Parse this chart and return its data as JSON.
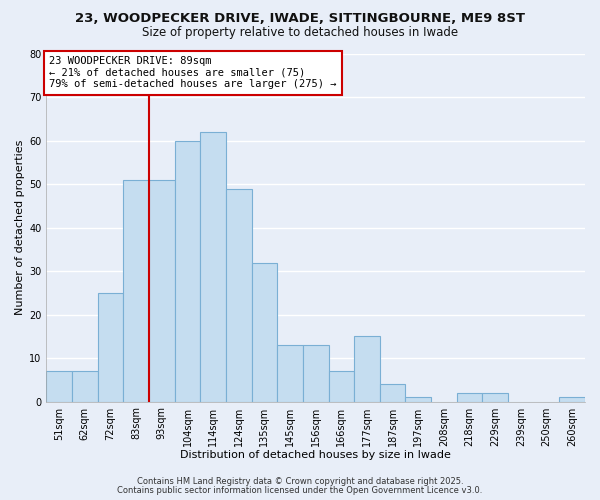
{
  "title_line1": "23, WOODPECKER DRIVE, IWADE, SITTINGBOURNE, ME9 8ST",
  "title_line2": "Size of property relative to detached houses in Iwade",
  "xlabel": "Distribution of detached houses by size in Iwade",
  "ylabel": "Number of detached properties",
  "bar_labels": [
    "51sqm",
    "62sqm",
    "72sqm",
    "83sqm",
    "93sqm",
    "104sqm",
    "114sqm",
    "124sqm",
    "135sqm",
    "145sqm",
    "156sqm",
    "166sqm",
    "177sqm",
    "187sqm",
    "197sqm",
    "208sqm",
    "218sqm",
    "229sqm",
    "239sqm",
    "250sqm",
    "260sqm"
  ],
  "bar_values": [
    7,
    7,
    25,
    51,
    51,
    60,
    62,
    49,
    32,
    13,
    13,
    7,
    15,
    4,
    1,
    0,
    2,
    2,
    0,
    0,
    1
  ],
  "bar_color": "#c5ddf0",
  "bar_edge_color": "#7aafd4",
  "vline_color": "#cc0000",
  "ylim": [
    0,
    80
  ],
  "yticks": [
    0,
    10,
    20,
    30,
    40,
    50,
    60,
    70,
    80
  ],
  "annotation_box_text": "23 WOODPECKER DRIVE: 89sqm\n← 21% of detached houses are smaller (75)\n79% of semi-detached houses are larger (275) →",
  "footnote_line1": "Contains HM Land Registry data © Crown copyright and database right 2025.",
  "footnote_line2": "Contains public sector information licensed under the Open Government Licence v3.0.",
  "background_color": "#e8eef8",
  "plot_bg_color": "#e8eef8",
  "grid_color": "#ffffff",
  "title_fontsize": 9.5,
  "subtitle_fontsize": 8.5,
  "axis_label_fontsize": 8,
  "tick_fontsize": 7,
  "annotation_fontsize": 7.5,
  "footnote_fontsize": 6
}
